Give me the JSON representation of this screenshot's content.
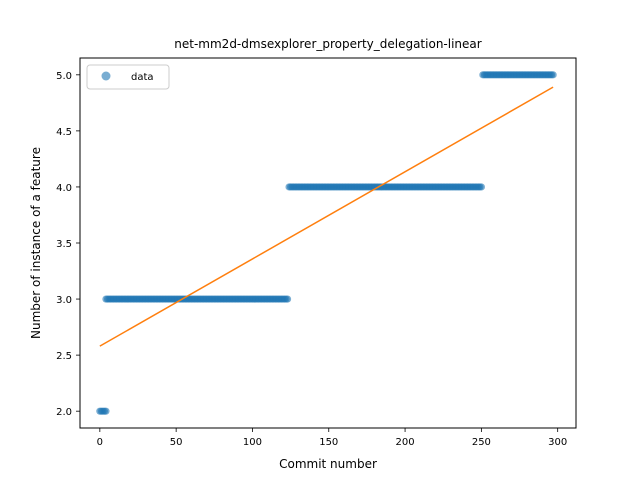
{
  "chart_data": {
    "type": "scatter",
    "title": "net-mm2d-dmsexplorer_property_delegation-linear",
    "xlabel": "Commit number",
    "ylabel": "Number of instance of a feature",
    "xlim": [
      -13,
      312
    ],
    "ylim": [
      1.85,
      5.15
    ],
    "xticks": [
      0,
      50,
      100,
      150,
      200,
      250,
      300
    ],
    "yticks": [
      2.0,
      2.5,
      3.0,
      3.5,
      4.0,
      4.5,
      5.0
    ],
    "xtick_labels": [
      "0",
      "50",
      "100",
      "150",
      "200",
      "250",
      "300"
    ],
    "ytick_labels": [
      "2.0",
      "2.5",
      "3.0",
      "3.5",
      "4.0",
      "4.5",
      "5.0"
    ],
    "grid": false,
    "legend": {
      "position": "top-left",
      "entries": [
        "data"
      ]
    },
    "series": [
      {
        "name": "data",
        "kind": "scatter",
        "color": "#1f77b4",
        "segments": [
          {
            "x_start": 0,
            "x_end": 4,
            "y": 2
          },
          {
            "x_start": 4,
            "x_end": 123,
            "y": 3
          },
          {
            "x_start": 124,
            "x_end": 250,
            "y": 4
          },
          {
            "x_start": 251,
            "x_end": 297,
            "y": 5
          }
        ]
      },
      {
        "name": "",
        "kind": "line",
        "color": "#ff7f0e",
        "x": [
          0,
          297
        ],
        "y": [
          2.58,
          4.89
        ]
      }
    ]
  }
}
